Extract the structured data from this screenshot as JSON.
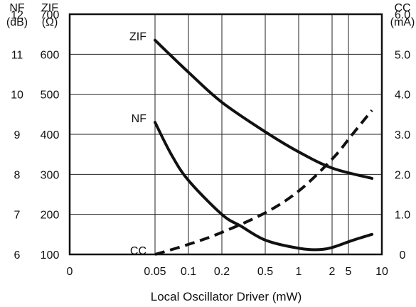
{
  "chart_data": {
    "type": "line",
    "title": "",
    "xlabel": "Local Oscillator Driver (mW)",
    "x_scale": "log",
    "x_ticks": [
      "0",
      "0.05",
      "0.1",
      "0.2",
      "0.5",
      "1",
      "2",
      "5",
      "10"
    ],
    "left_axes": [
      {
        "name": "NF",
        "unit": "(dB)",
        "ticks": [
          "12",
          "11",
          "10",
          "9",
          "8",
          "7",
          "6"
        ],
        "ylim": [
          6,
          12
        ]
      },
      {
        "name": "ZIF",
        "unit": "(Ω)",
        "ticks": [
          "700",
          "600",
          "500",
          "400",
          "300",
          "200",
          "100"
        ],
        "ylim": [
          100,
          700
        ]
      }
    ],
    "right_axis": {
      "name": "CC",
      "unit": "(mA)",
      "ticks": [
        "6.0",
        "5.0",
        "4.0",
        "3.0",
        "2.0",
        "1.0",
        "0"
      ],
      "ylim": [
        0,
        6
      ]
    },
    "series": [
      {
        "name": "ZIF",
        "axis": "ZIF",
        "style": "solid",
        "x": [
          0.05,
          0.1,
          0.2,
          0.5,
          1,
          2,
          4.5
        ],
        "y": [
          635,
          555,
          480,
          405,
          355,
          315,
          290
        ]
      },
      {
        "name": "NF",
        "axis": "NF",
        "style": "solid",
        "x": [
          0.05,
          0.07,
          0.1,
          0.2,
          0.3,
          0.5,
          1,
          1.5,
          2,
          3,
          4.5
        ],
        "y": [
          9.3,
          8.5,
          7.85,
          7.0,
          6.7,
          6.35,
          6.15,
          6.12,
          6.18,
          6.35,
          6.5
        ]
      },
      {
        "name": "CC",
        "axis": "CC",
        "style": "dashed",
        "x": [
          0.05,
          0.1,
          0.2,
          0.5,
          1,
          2,
          3,
          4.5
        ],
        "y": [
          0.0,
          0.25,
          0.55,
          1.05,
          1.6,
          2.4,
          3.0,
          3.6
        ]
      }
    ]
  }
}
